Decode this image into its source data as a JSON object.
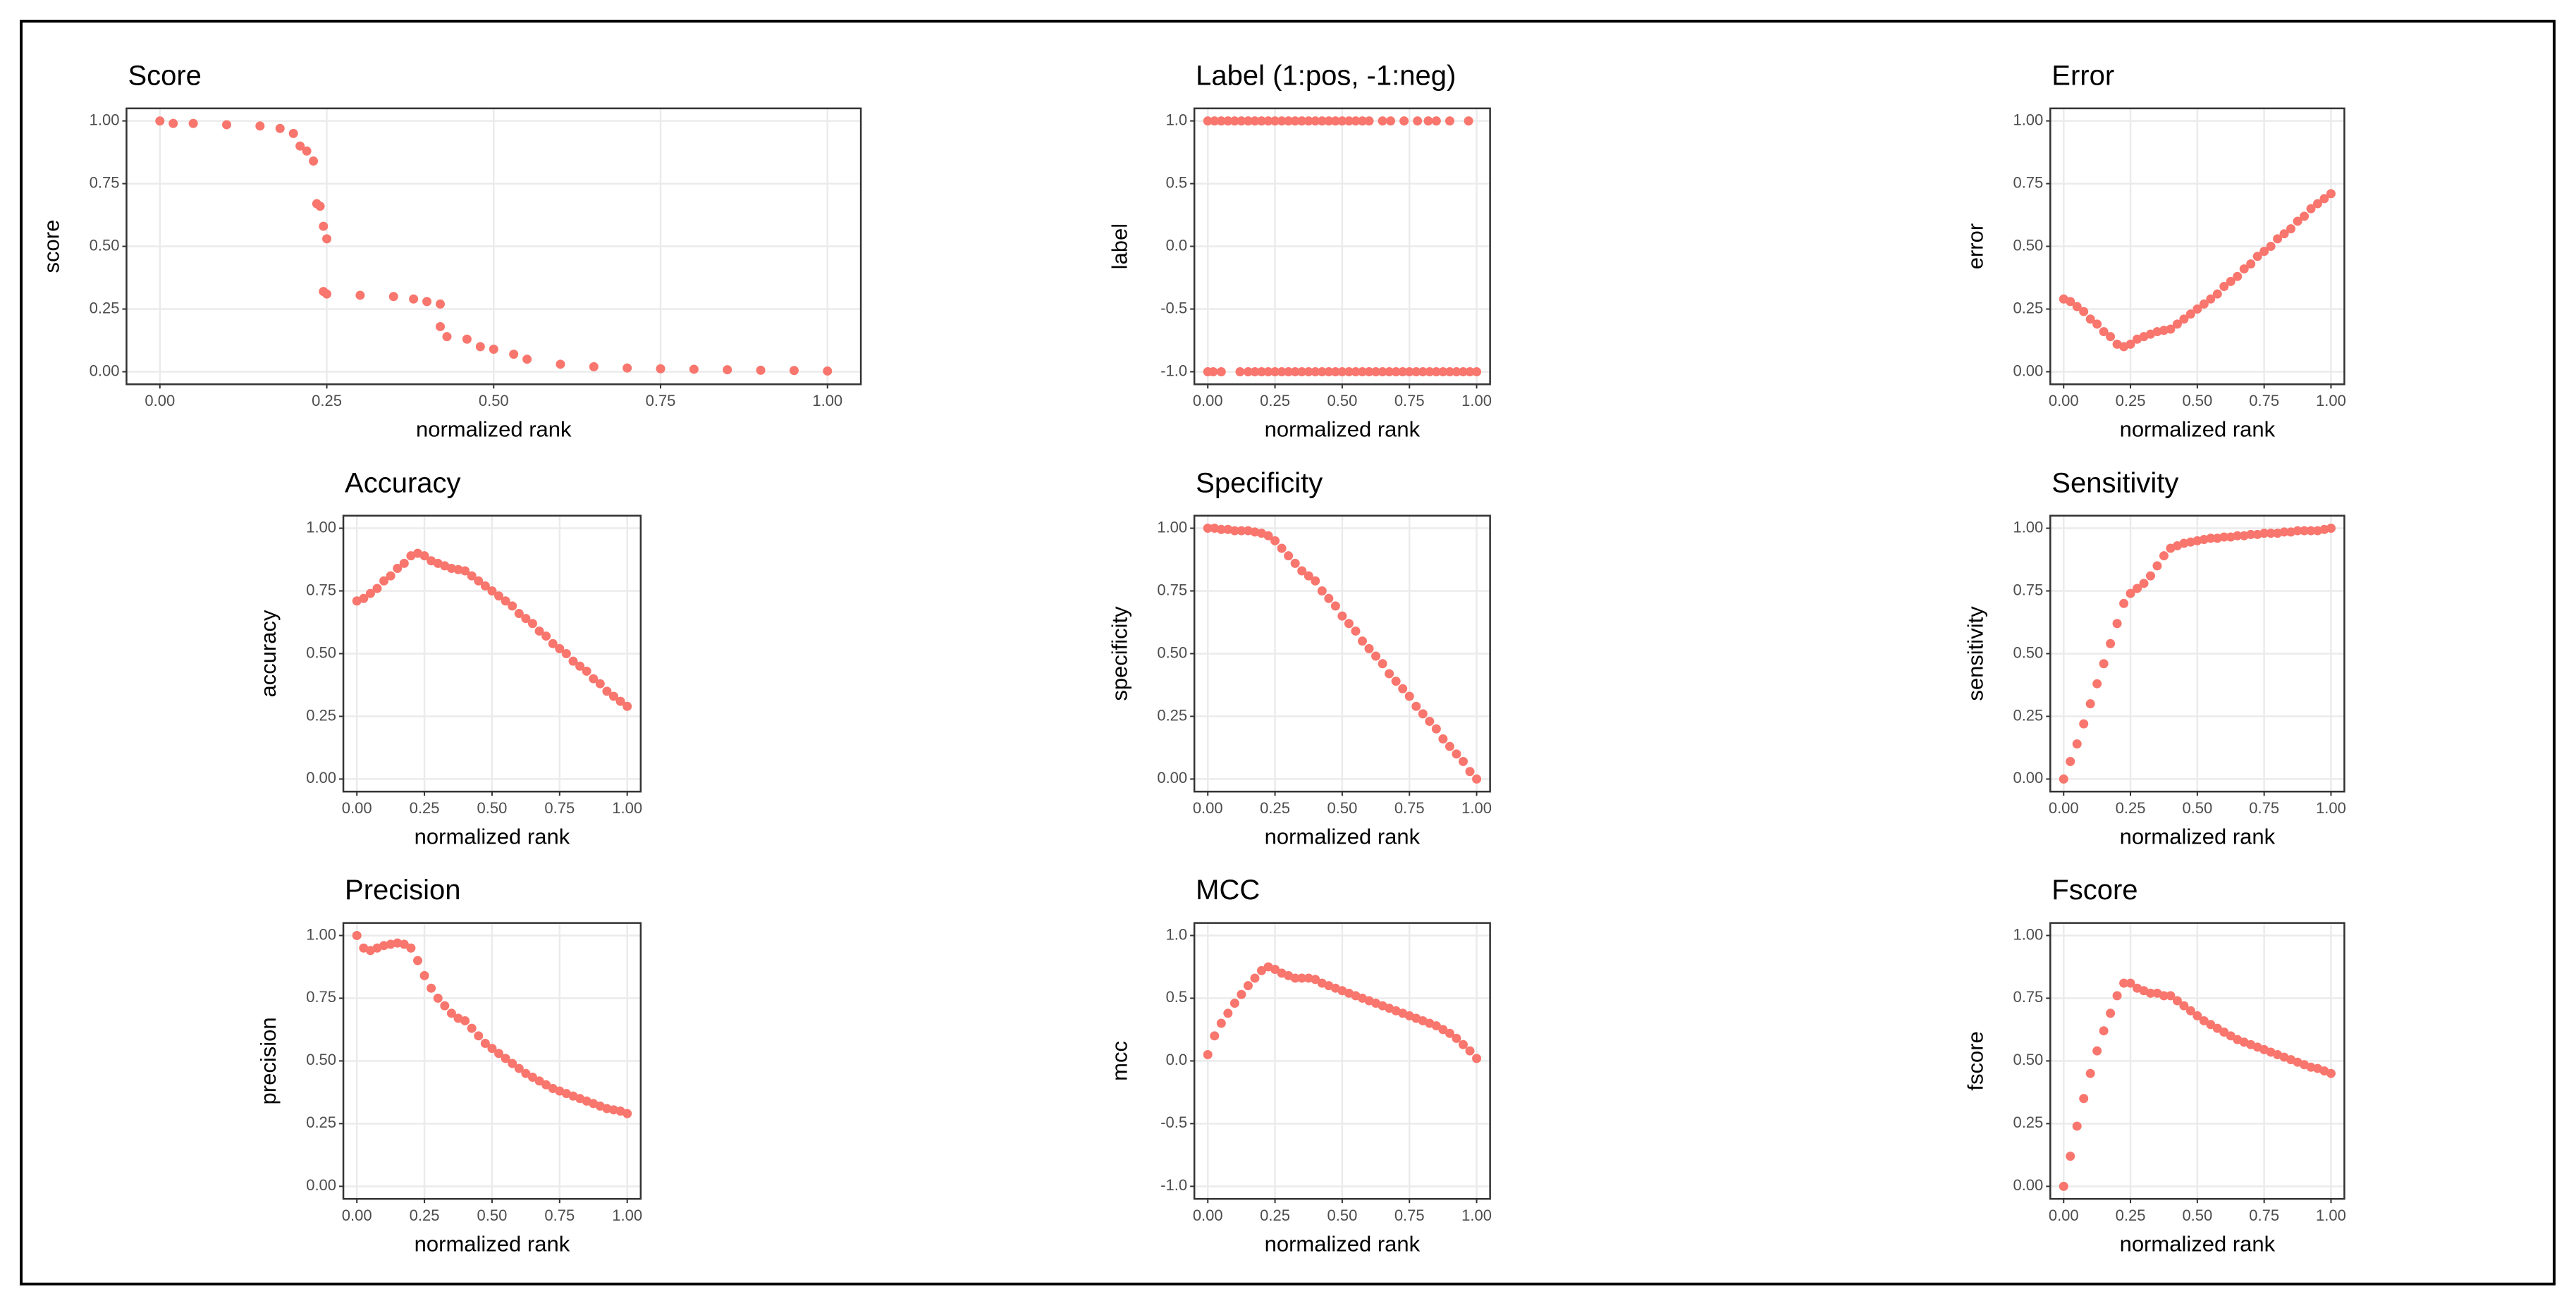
{
  "chart_data": [
    {
      "type": "scatter",
      "title": "Score",
      "xlabel": "normalized rank",
      "ylabel": "score",
      "color": "#f8766d",
      "grid": true,
      "x": [
        0,
        0.02,
        0.05,
        0.1,
        0.15,
        0.18,
        0.2,
        0.21,
        0.22,
        0.23,
        0.235,
        0.24,
        0.245,
        0.25,
        0.245,
        0.25,
        0.3,
        0.35,
        0.38,
        0.4,
        0.42,
        0.42,
        0.43,
        0.46,
        0.48,
        0.5,
        0.53,
        0.55,
        0.6,
        0.65,
        0.7,
        0.75,
        0.8,
        0.85,
        0.9,
        0.95,
        1.0
      ],
      "values": [
        1.0,
        0.99,
        0.99,
        0.985,
        0.98,
        0.97,
        0.95,
        0.9,
        0.88,
        0.84,
        0.67,
        0.66,
        0.58,
        0.53,
        0.32,
        0.31,
        0.305,
        0.3,
        0.29,
        0.28,
        0.27,
        0.18,
        0.14,
        0.13,
        0.1,
        0.09,
        0.07,
        0.05,
        0.03,
        0.02,
        0.015,
        0.012,
        0.01,
        0.008,
        0.006,
        0.005,
        0.003
      ],
      "xlim": [
        -0.05,
        1.05
      ],
      "ylim": [
        -0.05,
        1.05
      ],
      "xticks": [
        {
          "value": 0,
          "label": "0.00"
        },
        0.25,
        {
          "value": 0.5,
          "label": "0.50"
        },
        0.75,
        {
          "value": 1,
          "label": "1.00"
        }
      ],
      "yticks": [
        {
          "value": 0,
          "label": "0.00"
        },
        0.25,
        {
          "value": 0.5,
          "label": "0.50"
        },
        0.75,
        {
          "value": 1,
          "label": "1.00"
        }
      ]
    },
    {
      "type": "scatter",
      "title": "Label (1:pos, -1:neg)",
      "xlabel": "normalized rank",
      "ylabel": "label",
      "color": "#f8766d",
      "grid": true,
      "x": [
        0,
        0.025,
        0.05,
        0.075,
        0.1,
        0.125,
        0.15,
        0.175,
        0.2,
        0.225,
        0.25,
        0.275,
        0.3,
        0.325,
        0.35,
        0.375,
        0.4,
        0.425,
        0.45,
        0.475,
        0.5,
        0.525,
        0.55,
        0.575,
        0.6,
        0.65,
        0.68,
        0.73,
        0.78,
        0.82,
        0.85,
        0.9,
        0.97,
        0,
        0.02,
        0.05,
        0.12,
        0.15,
        0.175,
        0.2,
        0.225,
        0.25,
        0.275,
        0.3,
        0.325,
        0.35,
        0.375,
        0.4,
        0.425,
        0.45,
        0.475,
        0.5,
        0.525,
        0.55,
        0.575,
        0.6,
        0.625,
        0.65,
        0.675,
        0.7,
        0.725,
        0.75,
        0.775,
        0.8,
        0.825,
        0.85,
        0.875,
        0.9,
        0.925,
        0.95,
        0.975,
        1.0
      ],
      "values": [
        1,
        1,
        1,
        1,
        1,
        1,
        1,
        1,
        1,
        1,
        1,
        1,
        1,
        1,
        1,
        1,
        1,
        1,
        1,
        1,
        1,
        1,
        1,
        1,
        1,
        1,
        1,
        1,
        1,
        1,
        1,
        1,
        1,
        -1,
        -1,
        -1,
        -1,
        -1,
        -1,
        -1,
        -1,
        -1,
        -1,
        -1,
        -1,
        -1,
        -1,
        -1,
        -1,
        -1,
        -1,
        -1,
        -1,
        -1,
        -1,
        -1,
        -1,
        -1,
        -1,
        -1,
        -1,
        -1,
        -1,
        -1,
        -1,
        -1,
        -1,
        -1,
        -1,
        -1,
        -1,
        -1
      ],
      "xlim": [
        -0.05,
        1.05
      ],
      "ylim": [
        -1.1,
        1.1
      ],
      "xticks": [
        {
          "value": 0,
          "label": "0.00"
        },
        0.25,
        {
          "value": 0.5,
          "label": "0.50"
        },
        0.75,
        {
          "value": 1,
          "label": "1.00"
        }
      ],
      "yticks": [
        {
          "value": -1,
          "label": "-1.0"
        },
        -0.5,
        {
          "value": 0,
          "label": "0.0"
        },
        0.5,
        {
          "value": 1,
          "label": "1.0"
        }
      ]
    },
    {
      "type": "scatter",
      "title": "Error",
      "xlabel": "normalized rank",
      "ylabel": "error",
      "color": "#f8766d",
      "grid": true,
      "x": [
        0,
        0.025,
        0.05,
        0.075,
        0.1,
        0.125,
        0.15,
        0.175,
        0.2,
        0.225,
        0.25,
        0.275,
        0.3,
        0.325,
        0.35,
        0.375,
        0.4,
        0.425,
        0.45,
        0.475,
        0.5,
        0.525,
        0.55,
        0.575,
        0.6,
        0.625,
        0.65,
        0.675,
        0.7,
        0.725,
        0.75,
        0.775,
        0.8,
        0.825,
        0.85,
        0.875,
        0.9,
        0.925,
        0.95,
        0.975,
        1
      ],
      "values": [
        0.29,
        0.28,
        0.26,
        0.24,
        0.21,
        0.19,
        0.16,
        0.14,
        0.11,
        0.1,
        0.11,
        0.13,
        0.14,
        0.15,
        0.16,
        0.165,
        0.17,
        0.19,
        0.21,
        0.23,
        0.25,
        0.27,
        0.29,
        0.31,
        0.34,
        0.36,
        0.38,
        0.41,
        0.43,
        0.46,
        0.48,
        0.5,
        0.53,
        0.55,
        0.57,
        0.6,
        0.62,
        0.65,
        0.67,
        0.69,
        0.71
      ],
      "xlim": [
        -0.05,
        1.05
      ],
      "ylim": [
        -0.05,
        1.05
      ],
      "xticks": [
        {
          "value": 0,
          "label": "0.00"
        },
        0.25,
        {
          "value": 0.5,
          "label": "0.50"
        },
        0.75,
        {
          "value": 1,
          "label": "1.00"
        }
      ],
      "yticks": [
        {
          "value": 0,
          "label": "0.00"
        },
        0.25,
        {
          "value": 0.5,
          "label": "0.50"
        },
        0.75,
        {
          "value": 1,
          "label": "1.00"
        }
      ]
    },
    {
      "type": "scatter",
      "title": "Accuracy",
      "xlabel": "normalized rank",
      "ylabel": "accuracy",
      "color": "#f8766d",
      "grid": true,
      "x": [
        0,
        0.025,
        0.05,
        0.075,
        0.1,
        0.125,
        0.15,
        0.175,
        0.2,
        0.225,
        0.25,
        0.275,
        0.3,
        0.325,
        0.35,
        0.375,
        0.4,
        0.425,
        0.45,
        0.475,
        0.5,
        0.525,
        0.55,
        0.575,
        0.6,
        0.625,
        0.65,
        0.675,
        0.7,
        0.725,
        0.75,
        0.775,
        0.8,
        0.825,
        0.85,
        0.875,
        0.9,
        0.925,
        0.95,
        0.975,
        1
      ],
      "values": [
        0.71,
        0.72,
        0.74,
        0.76,
        0.79,
        0.81,
        0.84,
        0.86,
        0.89,
        0.9,
        0.89,
        0.87,
        0.86,
        0.85,
        0.84,
        0.835,
        0.83,
        0.81,
        0.79,
        0.77,
        0.75,
        0.73,
        0.71,
        0.69,
        0.66,
        0.64,
        0.62,
        0.59,
        0.57,
        0.54,
        0.52,
        0.5,
        0.47,
        0.45,
        0.43,
        0.4,
        0.38,
        0.35,
        0.33,
        0.31,
        0.29
      ],
      "xlim": [
        -0.05,
        1.05
      ],
      "ylim": [
        -0.05,
        1.05
      ],
      "xticks": [
        {
          "value": 0,
          "label": "0.00"
        },
        0.25,
        {
          "value": 0.5,
          "label": "0.50"
        },
        0.75,
        {
          "value": 1,
          "label": "1.00"
        }
      ],
      "yticks": [
        {
          "value": 0,
          "label": "0.00"
        },
        0.25,
        {
          "value": 0.5,
          "label": "0.50"
        },
        0.75,
        {
          "value": 1,
          "label": "1.00"
        }
      ]
    },
    {
      "type": "scatter",
      "title": "Specificity",
      "xlabel": "normalized rank",
      "ylabel": "specificity",
      "color": "#f8766d",
      "grid": true,
      "x": [
        0,
        0.025,
        0.05,
        0.075,
        0.1,
        0.125,
        0.15,
        0.175,
        0.2,
        0.225,
        0.25,
        0.275,
        0.3,
        0.325,
        0.35,
        0.375,
        0.4,
        0.425,
        0.45,
        0.475,
        0.5,
        0.525,
        0.55,
        0.575,
        0.6,
        0.625,
        0.65,
        0.675,
        0.7,
        0.725,
        0.75,
        0.775,
        0.8,
        0.825,
        0.85,
        0.875,
        0.9,
        0.925,
        0.95,
        0.975,
        1
      ],
      "values": [
        1,
        1,
        0.995,
        0.995,
        0.99,
        0.99,
        0.99,
        0.985,
        0.98,
        0.97,
        0.95,
        0.92,
        0.89,
        0.86,
        0.83,
        0.81,
        0.79,
        0.75,
        0.72,
        0.69,
        0.65,
        0.62,
        0.59,
        0.55,
        0.52,
        0.49,
        0.46,
        0.42,
        0.39,
        0.36,
        0.33,
        0.29,
        0.26,
        0.23,
        0.2,
        0.16,
        0.13,
        0.1,
        0.07,
        0.03,
        0
      ],
      "xlim": [
        -0.05,
        1.05
      ],
      "ylim": [
        -0.05,
        1.05
      ],
      "xticks": [
        {
          "value": 0,
          "label": "0.00"
        },
        0.25,
        {
          "value": 0.5,
          "label": "0.50"
        },
        0.75,
        {
          "value": 1,
          "label": "1.00"
        }
      ],
      "yticks": [
        {
          "value": 0,
          "label": "0.00"
        },
        0.25,
        {
          "value": 0.5,
          "label": "0.50"
        },
        0.75,
        {
          "value": 1,
          "label": "1.00"
        }
      ]
    },
    {
      "type": "scatter",
      "title": "Sensitivity",
      "xlabel": "normalized rank",
      "ylabel": "sensitivity",
      "color": "#f8766d",
      "grid": true,
      "x": [
        0,
        0.025,
        0.05,
        0.075,
        0.1,
        0.125,
        0.15,
        0.175,
        0.2,
        0.225,
        0.25,
        0.275,
        0.3,
        0.325,
        0.35,
        0.375,
        0.4,
        0.425,
        0.45,
        0.475,
        0.5,
        0.525,
        0.55,
        0.575,
        0.6,
        0.625,
        0.65,
        0.675,
        0.7,
        0.725,
        0.75,
        0.775,
        0.8,
        0.825,
        0.85,
        0.875,
        0.9,
        0.925,
        0.95,
        0.975,
        1
      ],
      "values": [
        0,
        0.07,
        0.14,
        0.22,
        0.3,
        0.38,
        0.46,
        0.54,
        0.62,
        0.7,
        0.74,
        0.76,
        0.78,
        0.81,
        0.85,
        0.89,
        0.92,
        0.93,
        0.94,
        0.945,
        0.95,
        0.955,
        0.96,
        0.96,
        0.965,
        0.965,
        0.97,
        0.97,
        0.975,
        0.975,
        0.98,
        0.98,
        0.98,
        0.985,
        0.985,
        0.99,
        0.99,
        0.99,
        0.99,
        0.995,
        1
      ],
      "xlim": [
        -0.05,
        1.05
      ],
      "ylim": [
        -0.05,
        1.05
      ],
      "xticks": [
        {
          "value": 0,
          "label": "0.00"
        },
        0.25,
        {
          "value": 0.5,
          "label": "0.50"
        },
        0.75,
        {
          "value": 1,
          "label": "1.00"
        }
      ],
      "yticks": [
        {
          "value": 0,
          "label": "0.00"
        },
        0.25,
        {
          "value": 0.5,
          "label": "0.50"
        },
        0.75,
        {
          "value": 1,
          "label": "1.00"
        }
      ]
    },
    {
      "type": "scatter",
      "title": "Precision",
      "xlabel": "normalized rank",
      "ylabel": "precision",
      "color": "#f8766d",
      "grid": true,
      "x": [
        0,
        0.025,
        0.05,
        0.075,
        0.1,
        0.125,
        0.15,
        0.175,
        0.2,
        0.225,
        0.25,
        0.275,
        0.3,
        0.325,
        0.35,
        0.375,
        0.4,
        0.425,
        0.45,
        0.475,
        0.5,
        0.525,
        0.55,
        0.575,
        0.6,
        0.625,
        0.65,
        0.675,
        0.7,
        0.725,
        0.75,
        0.775,
        0.8,
        0.825,
        0.85,
        0.875,
        0.9,
        0.925,
        0.95,
        0.975,
        1
      ],
      "values": [
        1.0,
        0.95,
        0.94,
        0.95,
        0.96,
        0.965,
        0.97,
        0.965,
        0.95,
        0.9,
        0.84,
        0.79,
        0.75,
        0.72,
        0.69,
        0.67,
        0.66,
        0.63,
        0.6,
        0.57,
        0.55,
        0.53,
        0.51,
        0.49,
        0.47,
        0.45,
        0.435,
        0.42,
        0.405,
        0.39,
        0.38,
        0.37,
        0.36,
        0.35,
        0.34,
        0.33,
        0.32,
        0.31,
        0.305,
        0.3,
        0.29
      ],
      "xlim": [
        -0.05,
        1.05
      ],
      "ylim": [
        -0.05,
        1.05
      ],
      "xticks": [
        {
          "value": 0,
          "label": "0.00"
        },
        0.25,
        {
          "value": 0.5,
          "label": "0.50"
        },
        0.75,
        {
          "value": 1,
          "label": "1.00"
        }
      ],
      "yticks": [
        {
          "value": 0,
          "label": "0.00"
        },
        0.25,
        {
          "value": 0.5,
          "label": "0.50"
        },
        0.75,
        {
          "value": 1,
          "label": "1.00"
        }
      ]
    },
    {
      "type": "scatter",
      "title": "MCC",
      "xlabel": "normalized rank",
      "ylabel": "mcc",
      "color": "#f8766d",
      "grid": true,
      "x": [
        0,
        0.025,
        0.05,
        0.075,
        0.1,
        0.125,
        0.15,
        0.175,
        0.2,
        0.225,
        0.25,
        0.275,
        0.3,
        0.325,
        0.35,
        0.375,
        0.4,
        0.425,
        0.45,
        0.475,
        0.5,
        0.525,
        0.55,
        0.575,
        0.6,
        0.625,
        0.65,
        0.675,
        0.7,
        0.725,
        0.75,
        0.775,
        0.8,
        0.825,
        0.85,
        0.875,
        0.9,
        0.925,
        0.95,
        0.975,
        1
      ],
      "values": [
        0.05,
        0.2,
        0.3,
        0.38,
        0.46,
        0.53,
        0.6,
        0.66,
        0.72,
        0.75,
        0.73,
        0.7,
        0.68,
        0.66,
        0.66,
        0.66,
        0.65,
        0.62,
        0.6,
        0.58,
        0.56,
        0.54,
        0.52,
        0.5,
        0.48,
        0.46,
        0.44,
        0.42,
        0.4,
        0.38,
        0.36,
        0.34,
        0.32,
        0.3,
        0.28,
        0.25,
        0.22,
        0.18,
        0.13,
        0.08,
        0.02
      ],
      "xlim": [
        -0.05,
        1.05
      ],
      "ylim": [
        -1.1,
        1.1
      ],
      "xticks": [
        {
          "value": 0,
          "label": "0.00"
        },
        0.25,
        {
          "value": 0.5,
          "label": "0.50"
        },
        0.75,
        {
          "value": 1,
          "label": "1.00"
        }
      ],
      "yticks": [
        {
          "value": -1,
          "label": "-1.0"
        },
        -0.5,
        {
          "value": 0,
          "label": "0.0"
        },
        0.5,
        {
          "value": 1,
          "label": "1.0"
        }
      ]
    },
    {
      "type": "scatter",
      "title": "Fscore",
      "xlabel": "normalized rank",
      "ylabel": "fscore",
      "color": "#f8766d",
      "grid": true,
      "x": [
        0,
        0.025,
        0.05,
        0.075,
        0.1,
        0.125,
        0.15,
        0.175,
        0.2,
        0.225,
        0.25,
        0.275,
        0.3,
        0.325,
        0.35,
        0.375,
        0.4,
        0.425,
        0.45,
        0.475,
        0.5,
        0.525,
        0.55,
        0.575,
        0.6,
        0.625,
        0.65,
        0.675,
        0.7,
        0.725,
        0.75,
        0.775,
        0.8,
        0.825,
        0.85,
        0.875,
        0.9,
        0.925,
        0.95,
        0.975,
        1
      ],
      "values": [
        0,
        0.12,
        0.24,
        0.35,
        0.45,
        0.54,
        0.62,
        0.69,
        0.76,
        0.81,
        0.81,
        0.79,
        0.78,
        0.77,
        0.77,
        0.76,
        0.76,
        0.74,
        0.72,
        0.7,
        0.68,
        0.66,
        0.645,
        0.63,
        0.615,
        0.6,
        0.585,
        0.575,
        0.565,
        0.555,
        0.545,
        0.535,
        0.525,
        0.515,
        0.505,
        0.495,
        0.485,
        0.475,
        0.47,
        0.46,
        0.45
      ],
      "xlim": [
        -0.05,
        1.05
      ],
      "ylim": [
        -0.05,
        1.05
      ],
      "xticks": [
        {
          "value": 0,
          "label": "0.00"
        },
        0.25,
        {
          "value": 0.5,
          "label": "0.50"
        },
        0.75,
        {
          "value": 1,
          "label": "1.00"
        }
      ],
      "yticks": [
        {
          "value": 0,
          "label": "0.00"
        },
        0.25,
        {
          "value": 0.5,
          "label": "0.50"
        },
        0.75,
        {
          "value": 1,
          "label": "1.00"
        }
      ]
    }
  ]
}
